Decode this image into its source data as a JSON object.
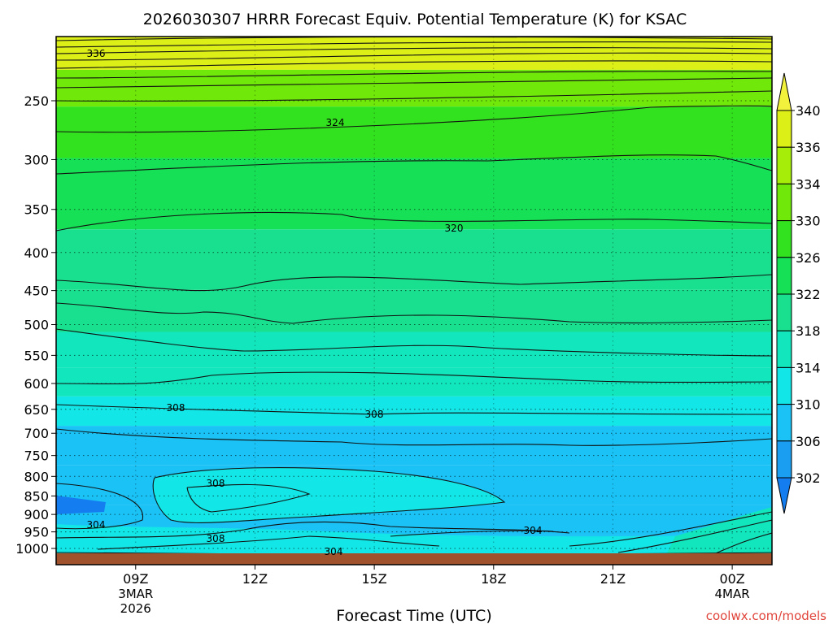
{
  "chart_data": {
    "type": "heatmap",
    "title": "2026030307 HRRR Forecast Equiv. Potential Temperature (K) for KSAC",
    "xlabel": "Forecast Time (UTC)",
    "ylabel": "",
    "credit": "coolwx.com/models",
    "x_ticks": [
      {
        "label": "09Z",
        "sub1": "3MAR",
        "sub2": "2026",
        "hour": 9
      },
      {
        "label": "12Z",
        "sub1": "",
        "sub2": "",
        "hour": 12
      },
      {
        "label": "15Z",
        "sub1": "",
        "sub2": "",
        "hour": 15
      },
      {
        "label": "18Z",
        "sub1": "",
        "sub2": "",
        "hour": 18
      },
      {
        "label": "21Z",
        "sub1": "",
        "sub2": "",
        "hour": 21
      },
      {
        "label": "00Z",
        "sub1": "4MAR",
        "sub2": "",
        "hour": 24
      }
    ],
    "xlim": [
      7,
      25
    ],
    "y_ticks": [
      "250",
      "300",
      "350",
      "400",
      "450",
      "500",
      "550",
      "600",
      "650",
      "700",
      "750",
      "800",
      "850",
      "900",
      "950",
      "1000"
    ],
    "y_tick_values": [
      250,
      300,
      350,
      400,
      450,
      500,
      550,
      600,
      650,
      700,
      750,
      800,
      850,
      900,
      950,
      1000
    ],
    "ylim": [
      1025,
      200
    ],
    "y_scale": "log-pressure",
    "colorbar": {
      "labels": [
        "340",
        "336",
        "334",
        "330",
        "326",
        "322",
        "318",
        "314",
        "310",
        "306",
        "302"
      ],
      "colors": [
        "#f2f23c",
        "#dcf018",
        "#a6ee0a",
        "#6fe80a",
        "#33e21e",
        "#16e055",
        "#18e08e",
        "#12e6bc",
        "#12e6e6",
        "#1ac2f6",
        "#1a9ef2",
        "#147ef0"
      ]
    },
    "ground_color": "#a0522d",
    "contour_label_values": [
      "336",
      "324",
      "320",
      "308",
      "308",
      "308",
      "304",
      "308",
      "304",
      "304"
    ],
    "color_bands": [
      {
        "pressure": 215,
        "value": 336
      },
      {
        "pressure": 240,
        "value": 330
      },
      {
        "pressure": 270,
        "value": 326
      },
      {
        "pressure": 330,
        "value": 322
      },
      {
        "pressure": 420,
        "value": 320
      },
      {
        "pressure": 480,
        "value": 318
      },
      {
        "pressure": 545,
        "value": 316
      },
      {
        "pressure": 600,
        "value": 314
      },
      {
        "pressure": 650,
        "value": 310
      },
      {
        "pressure": 720,
        "value": 308
      },
      {
        "pressure": 830,
        "value": 306
      },
      {
        "pressure": 920,
        "value": 307
      },
      {
        "pressure": 1000,
        "value": 309
      }
    ]
  }
}
